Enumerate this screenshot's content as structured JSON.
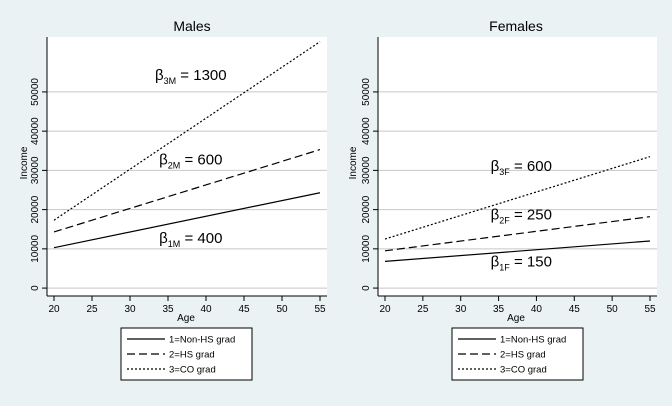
{
  "background_color": "#eaf2f3",
  "plot_background_color": "#ffffff",
  "grid_color": "#c8c8c8",
  "chart_data": [
    {
      "type": "line",
      "title": "Males",
      "xlabel": "Age",
      "ylabel": "Income",
      "xlim": [
        20,
        55
      ],
      "ylim": [
        -1000,
        64000
      ],
      "xticks": [
        20,
        25,
        30,
        35,
        40,
        45,
        50,
        55
      ],
      "yticks": [
        0,
        10000,
        20000,
        30000,
        40000,
        50000
      ],
      "grid": true,
      "x": [
        20,
        55
      ],
      "series": [
        {
          "name": "1=Non-HS grad",
          "dash": "solid",
          "values": [
            10300,
            24300
          ]
        },
        {
          "name": "2=HS grad",
          "dash": "dashed",
          "values": [
            14300,
            35300
          ]
        },
        {
          "name": "3=CO grad",
          "dash": "dotted",
          "values": [
            17300,
            62800
          ]
        }
      ],
      "annotations": [
        {
          "base": "β",
          "sub": "1M",
          "rest": " = 400",
          "x": 38,
          "y": 11500
        },
        {
          "base": "β",
          "sub": "2M",
          "rest": " = 600",
          "x": 38,
          "y": 31500
        },
        {
          "base": "β",
          "sub": "3M",
          "rest": " = 1300",
          "x": 38,
          "y": 53000
        }
      ],
      "legend": {
        "position": "bottom",
        "items": [
          "1=Non-HS grad",
          "2=HS grad",
          "3=CO grad"
        ]
      }
    },
    {
      "type": "line",
      "title": "Females",
      "xlabel": "Age",
      "ylabel": "Income",
      "xlim": [
        20,
        55
      ],
      "ylim": [
        -1000,
        64000
      ],
      "xticks": [
        20,
        25,
        30,
        35,
        40,
        45,
        50,
        55
      ],
      "yticks": [
        0,
        10000,
        20000,
        30000,
        40000,
        50000
      ],
      "grid": true,
      "x": [
        20,
        55
      ],
      "series": [
        {
          "name": "1=Non-HS grad",
          "dash": "solid",
          "values": [
            6800,
            12000
          ]
        },
        {
          "name": "2=HS grad",
          "dash": "dashed",
          "values": [
            9500,
            18200
          ]
        },
        {
          "name": "3=CO grad",
          "dash": "dotted",
          "values": [
            12500,
            33500
          ]
        }
      ],
      "annotations": [
        {
          "base": "β",
          "sub": "1F",
          "rest": " = 150",
          "x": 38,
          "y": 5500
        },
        {
          "base": "β",
          "sub": "2F",
          "rest": " = 250",
          "x": 38,
          "y": 17500
        },
        {
          "base": "β",
          "sub": "3F",
          "rest": " = 600",
          "x": 38,
          "y": 29800
        }
      ],
      "legend": {
        "position": "bottom",
        "items": [
          "1=Non-HS grad",
          "2=HS grad",
          "3=CO grad"
        ]
      }
    }
  ]
}
